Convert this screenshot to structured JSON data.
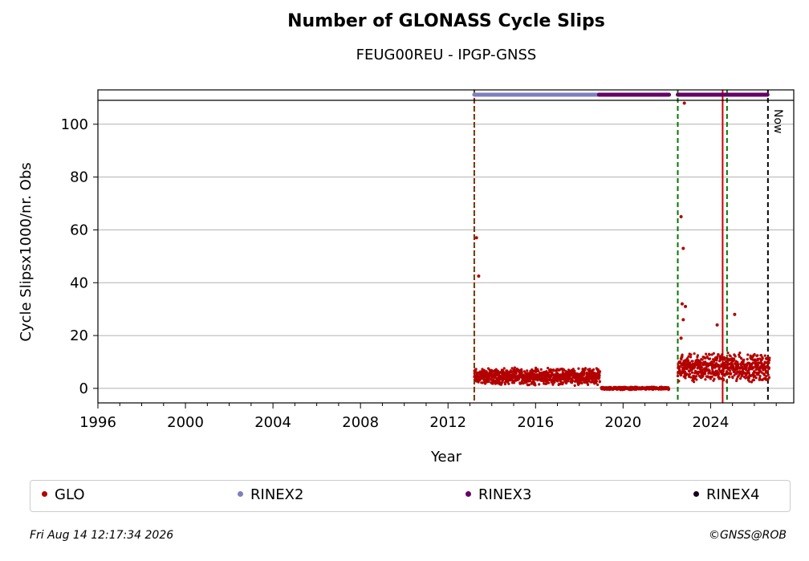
{
  "chart_data": {
    "type": "scatter",
    "title": "Number of GLONASS Cycle Slips",
    "subtitle": "FEUG00REU - IPGP-GNSS",
    "xlabel": "Year",
    "ylabel": "Cycle Slipsx1000/nr. Obs",
    "xlim": [
      1996,
      2027.8
    ],
    "ylim": [
      -5.5,
      113
    ],
    "x_ticks": [
      1996,
      2000,
      2004,
      2008,
      2012,
      2016,
      2020,
      2024
    ],
    "y_ticks": [
      0,
      20,
      40,
      60,
      80,
      100
    ],
    "grid": "horizontal",
    "legend_position": "bottom",
    "series": [
      {
        "name": "GLO",
        "color": "#b30000",
        "segments": [
          {
            "x_start": 2013.2,
            "x_end": 2018.95,
            "baseline": 4.5,
            "spread": 3.5
          },
          {
            "x_start": 2019.0,
            "x_end": 2022.1,
            "baseline": 0.0,
            "spread": 0.6
          },
          {
            "x_start": 2022.5,
            "x_end": 2026.7,
            "baseline": 8.0,
            "spread": 6.0
          }
        ],
        "outliers": [
          {
            "x": 2013.3,
            "y": 57
          },
          {
            "x": 2013.4,
            "y": 42.5
          },
          {
            "x": 2022.65,
            "y": 65
          },
          {
            "x": 2022.75,
            "y": 53
          },
          {
            "x": 2022.8,
            "y": 108
          },
          {
            "x": 2022.7,
            "y": 32
          },
          {
            "x": 2022.85,
            "y": 31
          },
          {
            "x": 2022.75,
            "y": 26
          },
          {
            "x": 2022.65,
            "y": 19
          },
          {
            "x": 2024.3,
            "y": 24
          },
          {
            "x": 2025.1,
            "y": 28
          }
        ]
      }
    ],
    "format_bars": [
      {
        "name": "RINEX2",
        "color": "#7f7fbf",
        "x_start": 2013.2,
        "x_end": 2018.9
      },
      {
        "name": "RINEX3",
        "color": "#660066",
        "x_start": 2018.9,
        "x_end": 2022.1
      },
      {
        "name": "RINEX3",
        "color": "#660066",
        "x_start": 2022.5,
        "x_end": 2026.6
      }
    ],
    "vertical_lines": [
      {
        "x": 2013.2,
        "color": "#007700",
        "style": "dashed"
      },
      {
        "x": 2013.2,
        "color": "#cc0000",
        "style": "dotted"
      },
      {
        "x": 2022.5,
        "color": "#007700",
        "style": "dashed"
      },
      {
        "x": 2024.55,
        "color": "#cc0000",
        "style": "solid"
      },
      {
        "x": 2024.75,
        "color": "#007700",
        "style": "dashed"
      },
      {
        "x": 2026.62,
        "color": "#000000",
        "style": "dashed",
        "label": "Now"
      }
    ],
    "legend": [
      {
        "label": "GLO",
        "color": "#b30000"
      },
      {
        "label": "RINEX2",
        "color": "#7f7fbf"
      },
      {
        "label": "RINEX3",
        "color": "#660066"
      },
      {
        "label": "RINEX4",
        "color": "#1a001a"
      }
    ]
  },
  "footer": {
    "timestamp": "Fri Aug 14 12:17:34 2026",
    "credit": "©GNSS@ROB"
  }
}
